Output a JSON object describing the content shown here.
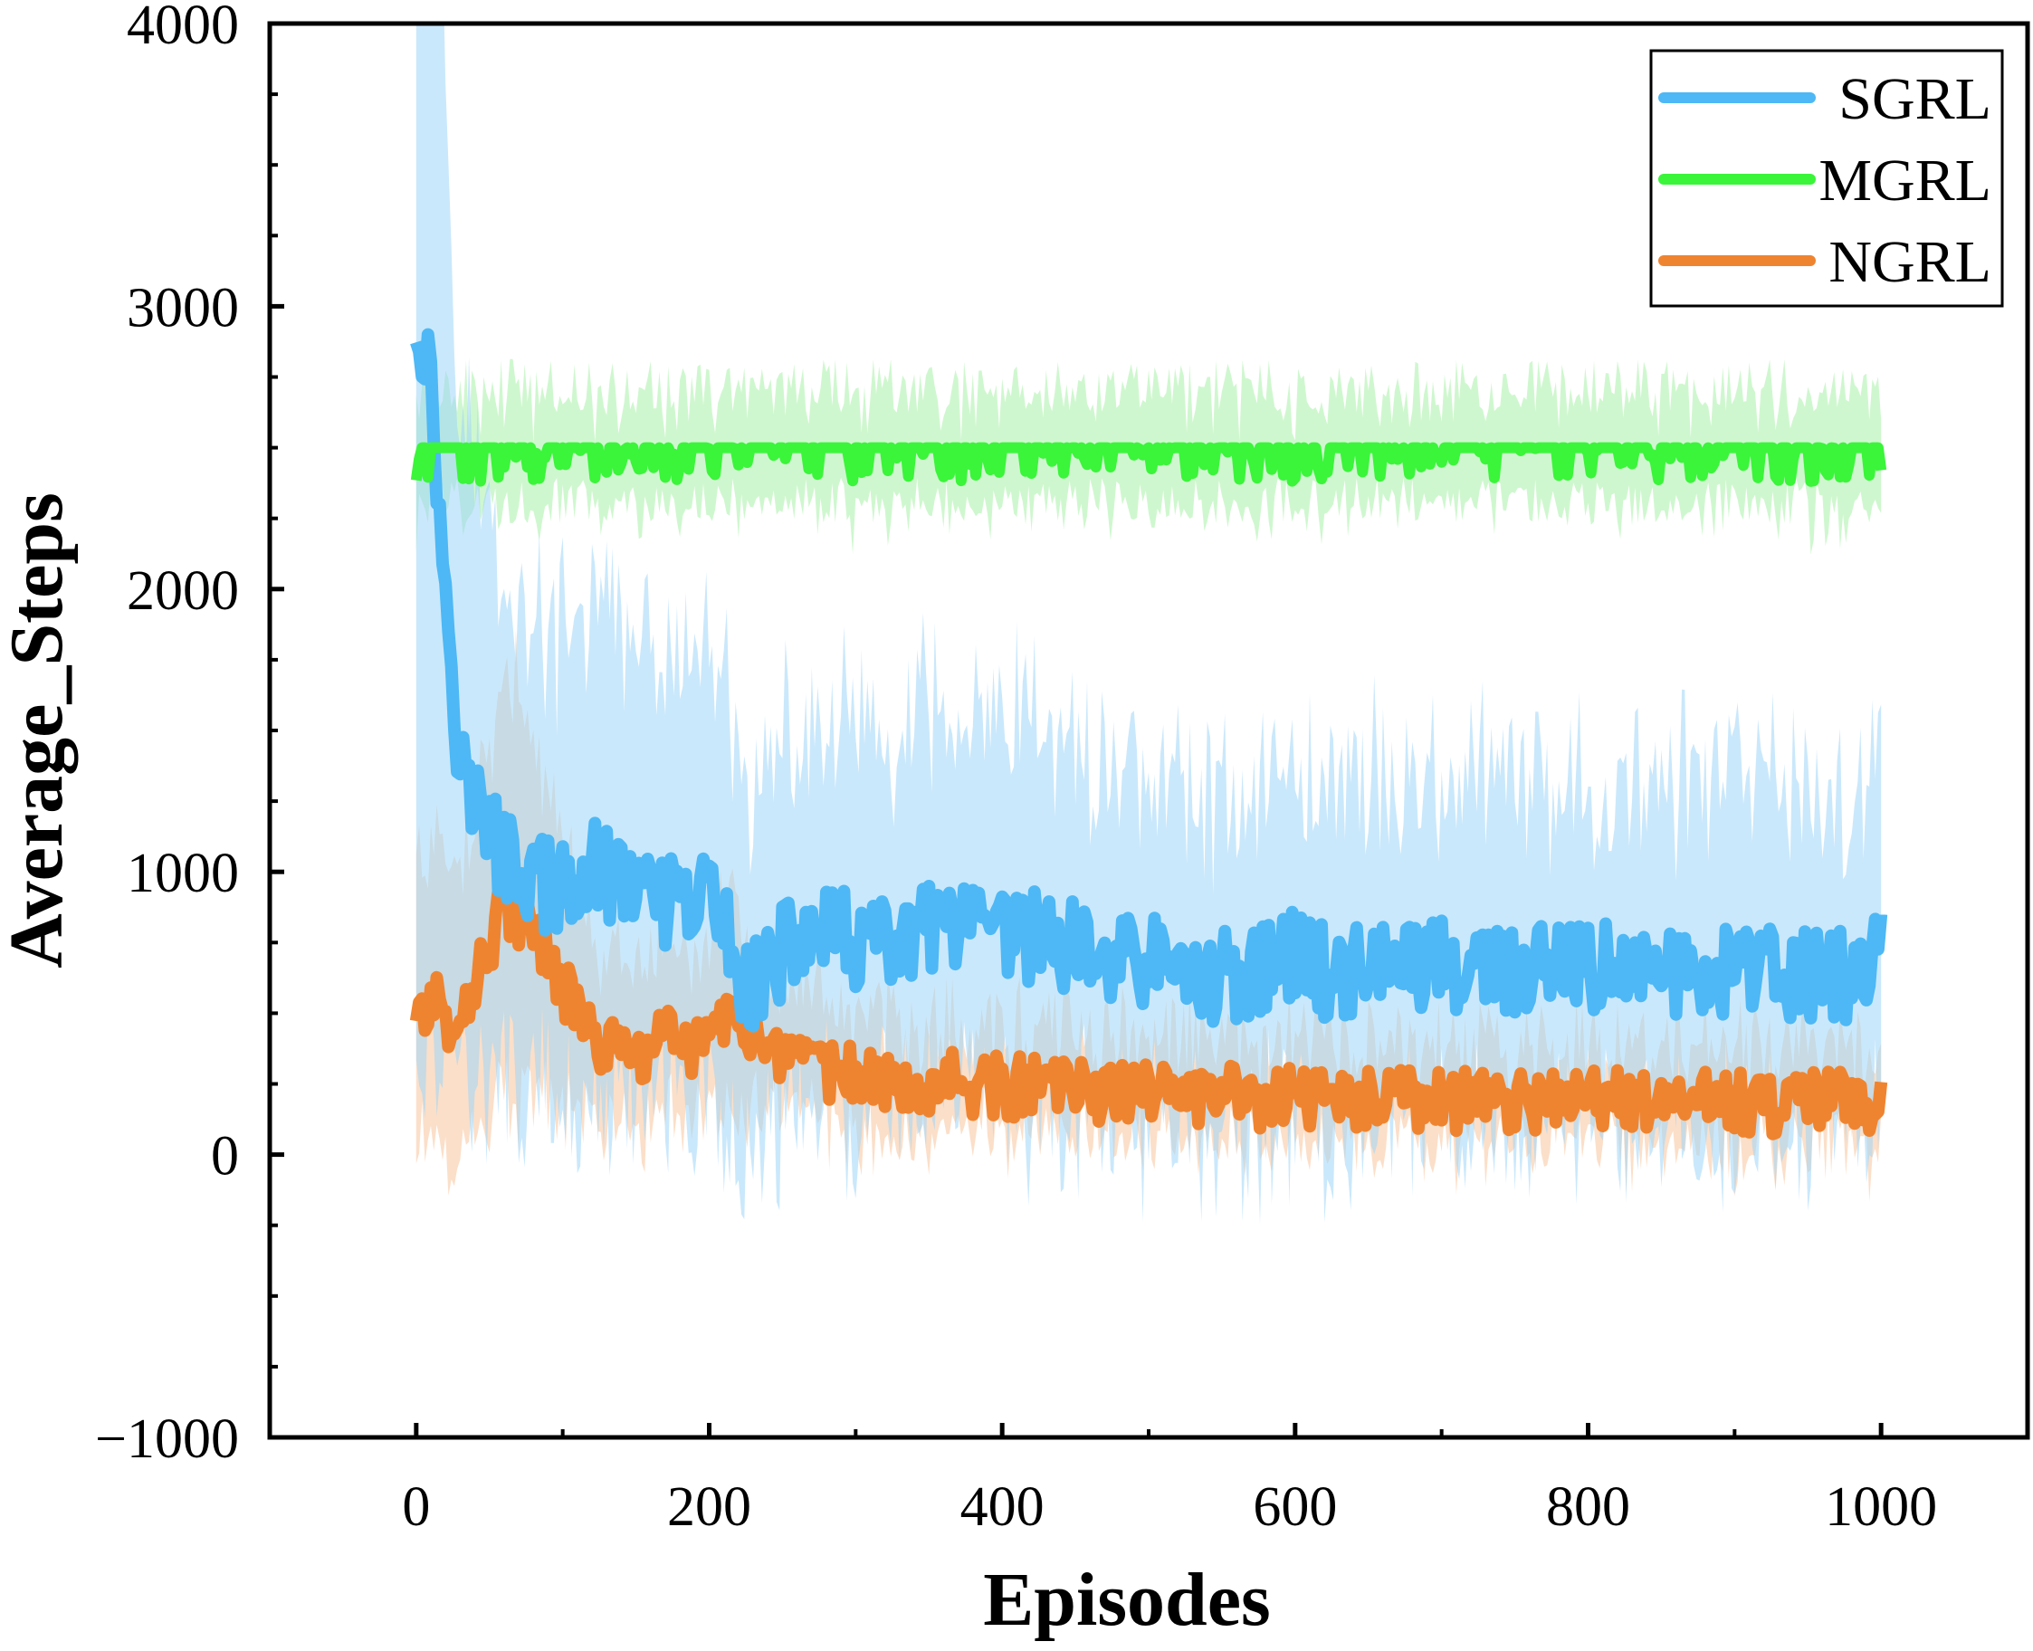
{
  "chart_data": {
    "type": "line",
    "title": "",
    "xlabel": "Episodes",
    "ylabel": "Average_Steps",
    "xlim": [
      -100,
      1100
    ],
    "ylim": [
      -1000,
      4000
    ],
    "xticks": [
      0,
      200,
      400,
      600,
      800,
      1000
    ],
    "yticks": [
      -1000,
      0,
      1000,
      2000,
      3000,
      4000
    ],
    "xtick_labels": [
      "0",
      "200",
      "400",
      "600",
      "800",
      "1000"
    ],
    "ytick_labels": [
      "−1000",
      "0",
      "1000",
      "2000",
      "3000",
      "4000"
    ],
    "legend_position": "top-right",
    "grid": false,
    "series": [
      {
        "name": "SGRL",
        "color": "#4db8f5",
        "band_color": "#9fd6f7",
        "x": [
          0,
          5,
          10,
          15,
          20,
          25,
          30,
          40,
          50,
          60,
          70,
          80,
          90,
          100,
          110,
          120,
          130,
          140,
          150,
          160,
          170,
          180,
          190,
          200,
          210,
          220,
          230,
          240,
          250,
          275,
          300,
          325,
          350,
          375,
          400,
          425,
          450,
          475,
          500,
          525,
          550,
          575,
          600,
          625,
          650,
          675,
          700,
          725,
          750,
          775,
          800,
          825,
          850,
          875,
          900,
          925,
          950,
          975,
          1000
        ],
        "values": [
          2950,
          2900,
          2700,
          2350,
          2000,
          1700,
          1400,
          1250,
          1150,
          1050,
          1000,
          980,
          950,
          920,
          900,
          1050,
          980,
          950,
          1000,
          850,
          900,
          850,
          870,
          950,
          800,
          650,
          620,
          650,
          720,
          780,
          760,
          720,
          800,
          780,
          760,
          780,
          720,
          700,
          680,
          640,
          620,
          650,
          700,
          640,
          680,
          660,
          680,
          640,
          660,
          630,
          650,
          660,
          640,
          660,
          650,
          630,
          640,
          620,
          700
        ],
        "band": [
          1.0,
          1.0,
          0.95,
          0.9,
          0.85,
          0.8,
          0.8,
          0.75,
          0.75,
          0.75,
          0.7,
          0.7,
          0.7,
          0.7,
          0.7,
          0.7,
          0.7,
          0.7,
          0.7,
          0.7,
          0.7,
          0.7,
          0.7,
          0.7,
          0.7,
          0.65,
          0.65,
          0.65,
          0.65,
          0.65,
          0.65,
          0.65,
          0.65,
          0.65,
          0.65,
          0.65,
          0.65,
          0.65,
          0.65,
          0.65,
          0.65,
          0.65,
          0.65,
          0.65,
          0.65,
          0.65,
          0.65,
          0.65,
          0.65,
          0.65,
          0.65,
          0.65,
          0.65,
          0.65,
          0.65,
          0.65,
          0.65,
          0.65,
          0.65
        ],
        "line_width": 14,
        "noise_amp": 170,
        "band_noise_amp": 480
      },
      {
        "name": "MGRL",
        "color": "#3af53a",
        "band_color": "#a8f0a8",
        "x": [
          0,
          100,
          200,
          300,
          400,
          500,
          600,
          700,
          800,
          900,
          1000
        ],
        "values": [
          2500,
          2500,
          2500,
          2500,
          2500,
          2500,
          2500,
          2500,
          2500,
          2500,
          2500
        ],
        "band": [
          0.05,
          0.05,
          0.05,
          0.05,
          0.05,
          0.05,
          0.05,
          0.05,
          0.05,
          0.05,
          0.05
        ],
        "line_width": 12,
        "noise_amp": 60,
        "band_noise_amp": 190
      },
      {
        "name": "NGRL",
        "color": "#ef8430",
        "band_color": "#f7c49c",
        "x": [
          0,
          10,
          20,
          30,
          40,
          50,
          60,
          70,
          80,
          90,
          100,
          110,
          120,
          130,
          140,
          150,
          160,
          170,
          180,
          190,
          200,
          210,
          220,
          230,
          240,
          250,
          275,
          300,
          325,
          350,
          375,
          400,
          425,
          450,
          475,
          500,
          525,
          550,
          575,
          600,
          625,
          650,
          675,
          700,
          725,
          750,
          775,
          800,
          825,
          850,
          875,
          900,
          925,
          950,
          975,
          1000
        ],
        "values": [
          500,
          550,
          480,
          520,
          600,
          750,
          900,
          850,
          750,
          700,
          600,
          500,
          420,
          380,
          350,
          350,
          380,
          420,
          380,
          400,
          380,
          500,
          520,
          420,
          350,
          300,
          300,
          280,
          270,
          260,
          250,
          240,
          240,
          230,
          220,
          220,
          210,
          210,
          200,
          200,
          200,
          190,
          190,
          190,
          190,
          190,
          190,
          190,
          190,
          190,
          190,
          190,
          180,
          190,
          190,
          190
        ],
        "band": [
          0.8,
          0.8,
          0.8,
          0.8,
          0.8,
          0.8,
          0.8,
          0.8,
          0.75,
          0.7,
          0.6,
          0.6,
          0.55,
          0.55,
          0.55,
          0.5,
          0.5,
          0.5,
          0.5,
          0.5,
          0.5,
          0.55,
          0.5,
          0.45,
          0.4,
          0.35,
          0.35,
          0.35,
          0.35,
          0.35,
          0.35,
          0.35,
          0.35,
          0.35,
          0.35,
          0.35,
          0.35,
          0.35,
          0.35,
          0.35,
          0.35,
          0.35,
          0.35,
          0.35,
          0.35,
          0.35,
          0.35,
          0.35,
          0.35,
          0.35,
          0.35,
          0.35,
          0.35,
          0.35,
          0.35,
          0.35
        ],
        "line_width": 14,
        "noise_amp": 110,
        "band_noise_amp": 230
      }
    ]
  }
}
